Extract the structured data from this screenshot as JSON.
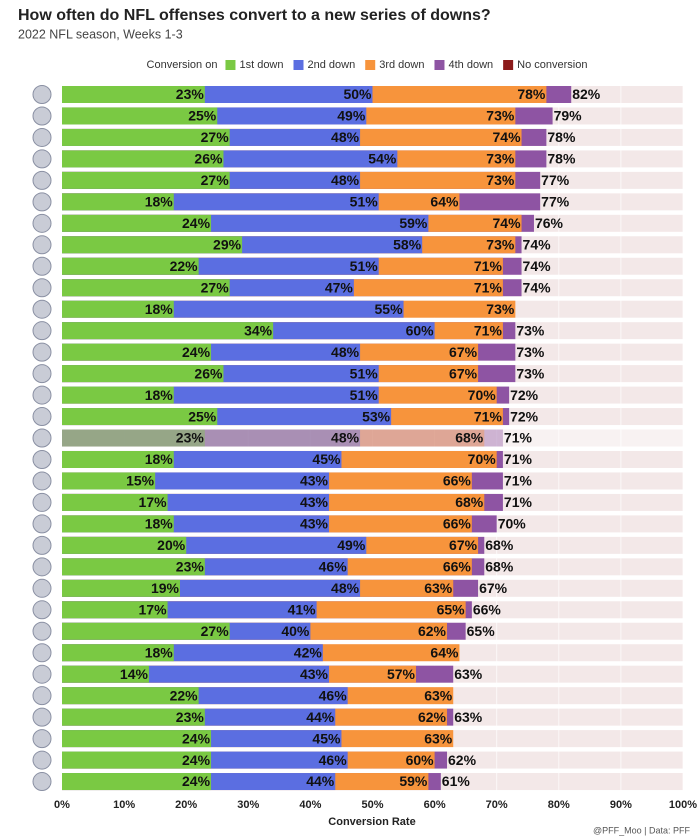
{
  "chart_data": {
    "type": "bar",
    "orientation": "horizontal",
    "overlap": true,
    "title": "How often do NFL offenses convert to a new series of downs?",
    "subtitle": "2022 NFL season, Weeks 1-3",
    "x_label": "Conversion Rate",
    "caption": "@PFF_Moo | Data: PFF",
    "legend_title": "Conversion on",
    "xlim": [
      0,
      100
    ],
    "xticks": [
      {
        "value": 0,
        "label": "0%"
      },
      {
        "value": 10,
        "label": "10%"
      },
      {
        "value": 20,
        "label": "20%"
      },
      {
        "value": 30,
        "label": "30%"
      },
      {
        "value": 40,
        "label": "40%"
      },
      {
        "value": 50,
        "label": "50%"
      },
      {
        "value": 60,
        "label": "60%"
      },
      {
        "value": 70,
        "label": "70%"
      },
      {
        "value": 80,
        "label": "80%"
      },
      {
        "value": 90,
        "label": "90%"
      },
      {
        "value": 100,
        "label": "100%"
      }
    ],
    "grid": true,
    "faded_row": 16,
    "series": [
      {
        "name": "1st down",
        "color": "#7ac943",
        "values": [
          23,
          25,
          27,
          26,
          27,
          18,
          24,
          29,
          22,
          27,
          18,
          34,
          24,
          26,
          18,
          25,
          23,
          18,
          15,
          17,
          18,
          20,
          23,
          19,
          17,
          27,
          18,
          14,
          22,
          23,
          24,
          24,
          24
        ],
        "value_labels": [
          "23%",
          "25%",
          "27%",
          "26%",
          "27%",
          "18%",
          "24%",
          "29%",
          "22%",
          "27%",
          "18%",
          "34%",
          "24%",
          "26%",
          "18%",
          "25%",
          "23%",
          "18%",
          "15%",
          "17%",
          "18%",
          "20%",
          "23%",
          "19%",
          "17%",
          "27%",
          "18%",
          "14%",
          "22%",
          "23%",
          "24%",
          "24%",
          "24%"
        ]
      },
      {
        "name": "2nd down",
        "color": "#5b6ee1",
        "values": [
          50,
          49,
          48,
          54,
          48,
          51,
          59,
          58,
          51,
          47,
          55,
          60,
          48,
          51,
          51,
          53,
          48,
          45,
          43,
          43,
          43,
          49,
          46,
          48,
          41,
          40,
          42,
          43,
          46,
          44,
          45,
          46,
          44
        ],
        "value_labels": [
          "50%",
          "49%",
          "48%",
          "54%",
          "48%",
          "51%",
          "59%",
          "58%",
          "51%",
          "47%",
          "55%",
          "60%",
          "48%",
          "51%",
          "51%",
          "53%",
          "48%",
          "45%",
          "43%",
          "43%",
          "43%",
          "49%",
          "46%",
          "48%",
          "41%",
          "40%",
          "42%",
          "43%",
          "46%",
          "44%",
          "45%",
          "46%",
          "44%"
        ]
      },
      {
        "name": "3rd down",
        "color": "#f7943c",
        "values": [
          78,
          73,
          74,
          73,
          73,
          64,
          74,
          73,
          71,
          71,
          73,
          71,
          67,
          67,
          70,
          71,
          68,
          70,
          66,
          68,
          66,
          67,
          66,
          63,
          65,
          62,
          64,
          57,
          63,
          62,
          63,
          60,
          59
        ],
        "value_labels": [
          "78%",
          "73%",
          "74%",
          "73%",
          "73%",
          "64%",
          "74%",
          "73%",
          "71%",
          "71%",
          "73%",
          "71%",
          "67%",
          "67%",
          "70%",
          "71%",
          "68%",
          "70%",
          "66%",
          "68%",
          "66%",
          "67%",
          "66%",
          "63%",
          "65%",
          "62%",
          "64%",
          "57%",
          "63%",
          "62%",
          "63%",
          "60%",
          "59%"
        ]
      },
      {
        "name": "4th down",
        "color": "#8e54a3",
        "values": [
          82,
          79,
          78,
          78,
          77,
          77,
          76,
          74,
          74,
          74,
          null,
          73,
          73,
          73,
          72,
          72,
          71,
          71,
          71,
          71,
          70,
          68,
          68,
          67,
          66,
          65,
          null,
          63,
          null,
          63,
          null,
          62,
          61
        ],
        "value_labels": [
          "82%",
          "79%",
          "78%",
          "78%",
          "77%",
          "77%",
          "76%",
          "74%",
          "74%",
          "74%",
          null,
          "73%",
          "73%",
          "73%",
          "72%",
          "72%",
          "71%",
          "71%",
          "71%",
          "71%",
          "70%",
          "68%",
          "68%",
          "67%",
          "66%",
          "65%",
          null,
          "63%",
          null,
          "63%",
          null,
          "62%",
          "61%"
        ]
      }
    ],
    "no_conversion": {
      "name": "No conversion",
      "color": "#8b1a1a"
    }
  }
}
